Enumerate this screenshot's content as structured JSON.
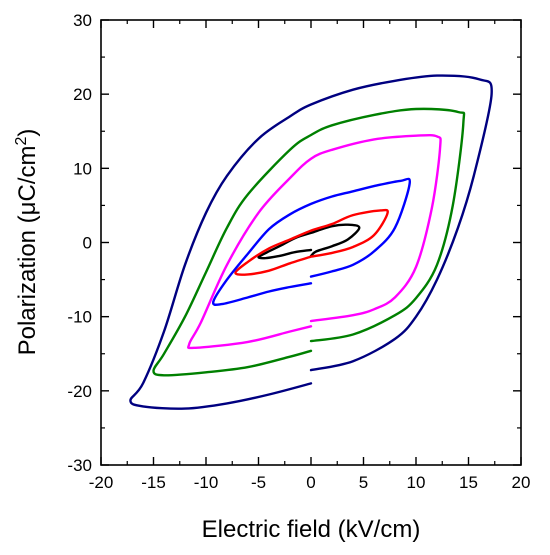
{
  "chart_data": {
    "type": "line",
    "title": "",
    "xlabel": "Electric field (kV/cm)",
    "ylabel": "Polarization (μC/cm²)",
    "ylabel_parts": {
      "pre": "Polarization (",
      "mu": "μ",
      "unit": "C/cm",
      "sup": "2",
      "post": ")"
    },
    "xlim": [
      -20,
      20
    ],
    "ylim": [
      -30,
      30
    ],
    "xticks": [
      -20,
      -15,
      -10,
      -5,
      0,
      5,
      10,
      15,
      20
    ],
    "yticks": [
      -30,
      -20,
      -10,
      0,
      10,
      20,
      30
    ],
    "grid": false,
    "legend": "none",
    "series": [
      {
        "color": "#000000",
        "x": [
          0,
          0.5,
          2,
          3.5,
          4.6,
          3.5,
          2,
          0,
          -1.5,
          -3,
          -4.3,
          -5,
          -4.3,
          -3,
          -1.5,
          0
        ],
        "y": [
          -1.8,
          -1.2,
          -0.5,
          0.4,
          2.0,
          2.4,
          2.2,
          1.3,
          0.6,
          -0.5,
          -1.4,
          -2.0,
          -2.1,
          -1.8,
          -1.3,
          -1.0
        ]
      },
      {
        "color": "#ff0000",
        "x": [
          0,
          2,
          4,
          6,
          7.3,
          6.5,
          4,
          2,
          0,
          -2,
          -4,
          -6,
          -7.2,
          -6,
          -4,
          -2,
          0
        ],
        "y": [
          -1.9,
          -1.4,
          -0.6,
          1.0,
          4.0,
          4.3,
          3.7,
          2.5,
          1.6,
          0.4,
          -0.8,
          -2.6,
          -4.1,
          -4.3,
          -3.8,
          -2.8,
          -1.9
        ]
      },
      {
        "color": "#0000ff",
        "x": [
          0,
          2,
          4,
          6,
          8,
          9.4,
          8.5,
          6,
          4,
          2,
          0,
          -2,
          -4,
          -6,
          -8,
          -9.3,
          -8.5,
          -6,
          -4,
          -2,
          0
        ],
        "y": [
          -4.6,
          -3.9,
          -3.0,
          -1.2,
          2.0,
          8.0,
          8.3,
          7.6,
          6.9,
          6.2,
          5.2,
          3.8,
          1.8,
          -1.5,
          -5.0,
          -8.0,
          -8.3,
          -7.4,
          -6.6,
          -6.0,
          -5.5
        ]
      },
      {
        "color": "#ff00ff",
        "x": [
          0,
          4,
          6,
          8,
          10,
          11.5,
          12.3,
          12,
          10,
          6,
          2,
          0,
          -2,
          -5,
          -8,
          -10.5,
          -11.6,
          -11,
          -6,
          -2,
          0
        ],
        "y": [
          -10.6,
          -9.8,
          -9.0,
          -7.4,
          -3.3,
          4.6,
          12.8,
          14.3,
          14.4,
          13.9,
          12.5,
          11.3,
          8.7,
          4.0,
          -3.0,
          -10.8,
          -13.7,
          -14.2,
          -13.4,
          -12.0,
          -11.3
        ]
      },
      {
        "color": "#008000",
        "x": [
          0,
          4,
          8,
          10,
          12,
          13.5,
          14.5,
          14,
          10,
          6,
          2,
          0,
          -2,
          -6,
          -8,
          -10,
          -12,
          -14,
          -15,
          -14,
          -10,
          -6,
          -2,
          0
        ],
        "y": [
          -13.3,
          -12.4,
          -9.8,
          -7.5,
          -3.0,
          5.0,
          16.0,
          17.6,
          18.0,
          17.2,
          15.8,
          14.5,
          12.5,
          6.5,
          2.0,
          -4.0,
          -10.0,
          -15.0,
          -17.3,
          -17.9,
          -17.5,
          -16.8,
          -15.4,
          -14.6
        ]
      },
      {
        "color": "#000080",
        "x": [
          0,
          4,
          8,
          10,
          12,
          14,
          15.5,
          17.2,
          16,
          12,
          8,
          4,
          0,
          -2,
          -5,
          -8,
          -10,
          -12,
          -14,
          -16,
          -17.2,
          -16,
          -12,
          -8,
          -4,
          0
        ],
        "y": [
          -17.2,
          -16.0,
          -13.0,
          -10.0,
          -5.0,
          2.0,
          9.0,
          20.0,
          22.0,
          22.5,
          21.8,
          20.6,
          18.6,
          17.0,
          14.0,
          9.0,
          4.0,
          -3.0,
          -12.0,
          -19.0,
          -21.3,
          -22.1,
          -22.4,
          -21.7,
          -20.5,
          -19.0
        ]
      }
    ]
  }
}
